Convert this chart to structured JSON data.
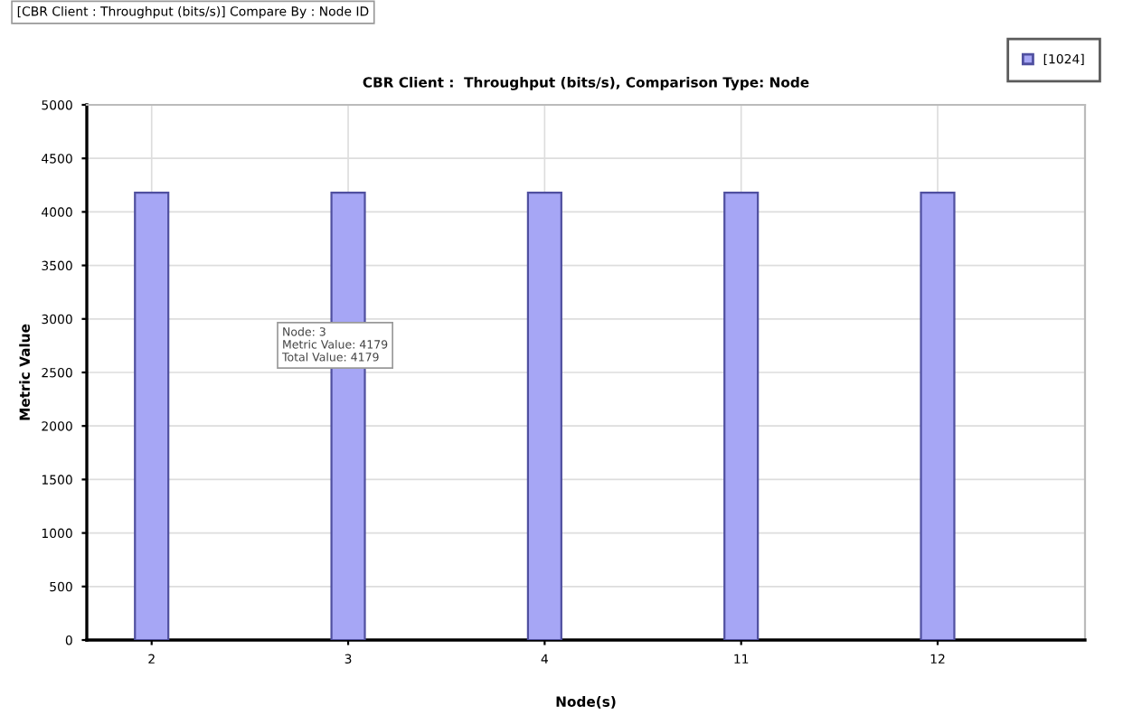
{
  "chart_data": {
    "type": "bar",
    "title": "CBR Client :  Throughput (bits/s), Comparison Type: Node",
    "xlabel": "Node(s)",
    "ylabel": "Metric Value",
    "categories": [
      "2",
      "3",
      "4",
      "11",
      "12"
    ],
    "series": [
      {
        "name": "[1024]",
        "color": "#a6a6f5",
        "values": [
          4179,
          4179,
          4179,
          4179,
          4179
        ]
      }
    ],
    "ylim": [
      0,
      5000
    ],
    "yticks": [
      0,
      500,
      1000,
      1500,
      2000,
      2500,
      3000,
      3500,
      4000,
      4500,
      5000
    ],
    "grid": true,
    "legend": "top right",
    "annotations": [
      "[CBR Client : Throughput (bits/s)] Compare By : Node ID",
      "Node: 3\nMetric Value: 4179\nTotal Value: 4179"
    ]
  }
}
